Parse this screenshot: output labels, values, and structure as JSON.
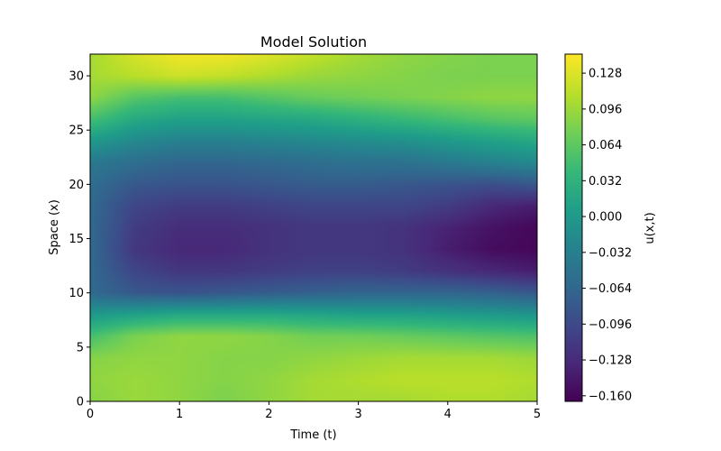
{
  "chart_data": {
    "type": "heatmap",
    "title": "Model Solution",
    "xlabel": "Time (t)",
    "ylabel": "Space (x)",
    "xlim": [
      0,
      5
    ],
    "ylim": [
      0,
      32
    ],
    "x_ticks": [
      "0",
      "1",
      "2",
      "3",
      "4",
      "5"
    ],
    "y_ticks": [
      "0",
      "5",
      "10",
      "15",
      "20",
      "25",
      "30"
    ],
    "colormap": "viridis",
    "colorbar": {
      "label": "u(x,t)",
      "range": [
        -0.165,
        0.145
      ],
      "ticks": [
        "−0.160",
        "−0.128",
        "−0.096",
        "−0.064",
        "−0.032",
        "0.000",
        "0.032",
        "0.064",
        "0.096",
        "0.128"
      ]
    },
    "t": [
      0,
      0.5,
      1,
      1.5,
      2,
      2.5,
      3,
      3.5,
      4,
      4.5,
      5
    ],
    "x": [
      0,
      2,
      4,
      6,
      8,
      10,
      12,
      14,
      16,
      18,
      20,
      22,
      24,
      26,
      28,
      30,
      32
    ],
    "values": [
      [
        0.085,
        0.095,
        0.09,
        0.08,
        0.09,
        0.1,
        0.1,
        0.1,
        0.105,
        0.105,
        0.1
      ],
      [
        0.09,
        0.095,
        0.09,
        0.085,
        0.09,
        0.1,
        0.105,
        0.11,
        0.11,
        0.11,
        0.105
      ],
      [
        0.085,
        0.09,
        0.09,
        0.085,
        0.085,
        0.09,
        0.095,
        0.1,
        0.1,
        0.1,
        0.095
      ],
      [
        0.05,
        0.08,
        0.09,
        0.09,
        0.085,
        0.075,
        0.075,
        0.07,
        0.065,
        0.06,
        0.055
      ],
      [
        0.0,
        0.01,
        0.02,
        0.02,
        0.02,
        0.015,
        0.01,
        0.01,
        0.005,
        0.0,
        -0.005
      ],
      [
        -0.06,
        -0.08,
        -0.085,
        -0.08,
        -0.075,
        -0.07,
        -0.065,
        -0.065,
        -0.065,
        -0.07,
        -0.08
      ],
      [
        -0.06,
        -0.1,
        -0.115,
        -0.115,
        -0.11,
        -0.105,
        -0.105,
        -0.11,
        -0.12,
        -0.13,
        -0.14
      ],
      [
        -0.06,
        -0.115,
        -0.13,
        -0.13,
        -0.12,
        -0.115,
        -0.115,
        -0.12,
        -0.14,
        -0.155,
        -0.16
      ],
      [
        -0.06,
        -0.11,
        -0.125,
        -0.125,
        -0.12,
        -0.115,
        -0.115,
        -0.12,
        -0.135,
        -0.15,
        -0.16
      ],
      [
        -0.06,
        -0.1,
        -0.11,
        -0.11,
        -0.105,
        -0.1,
        -0.1,
        -0.1,
        -0.11,
        -0.13,
        -0.14
      ],
      [
        -0.055,
        -0.08,
        -0.085,
        -0.085,
        -0.08,
        -0.075,
        -0.075,
        -0.08,
        -0.085,
        -0.09,
        -0.08
      ],
      [
        -0.04,
        -0.055,
        -0.065,
        -0.065,
        -0.06,
        -0.055,
        -0.05,
        -0.05,
        -0.04,
        -0.03,
        -0.02
      ],
      [
        0.0,
        -0.02,
        -0.03,
        -0.03,
        -0.025,
        -0.02,
        -0.015,
        -0.01,
        0.0,
        0.01,
        0.02
      ],
      [
        0.05,
        0.02,
        0.01,
        0.01,
        0.015,
        0.02,
        0.03,
        0.04,
        0.05,
        0.06,
        0.065
      ],
      [
        0.09,
        0.06,
        0.05,
        0.05,
        0.06,
        0.07,
        0.075,
        0.08,
        0.085,
        0.09,
        0.09
      ],
      [
        0.1,
        0.11,
        0.12,
        0.115,
        0.105,
        0.095,
        0.09,
        0.085,
        0.08,
        0.08,
        0.08
      ],
      [
        0.1,
        0.125,
        0.14,
        0.14,
        0.13,
        0.115,
        0.1,
        0.09,
        0.085,
        0.08,
        0.08
      ]
    ]
  }
}
